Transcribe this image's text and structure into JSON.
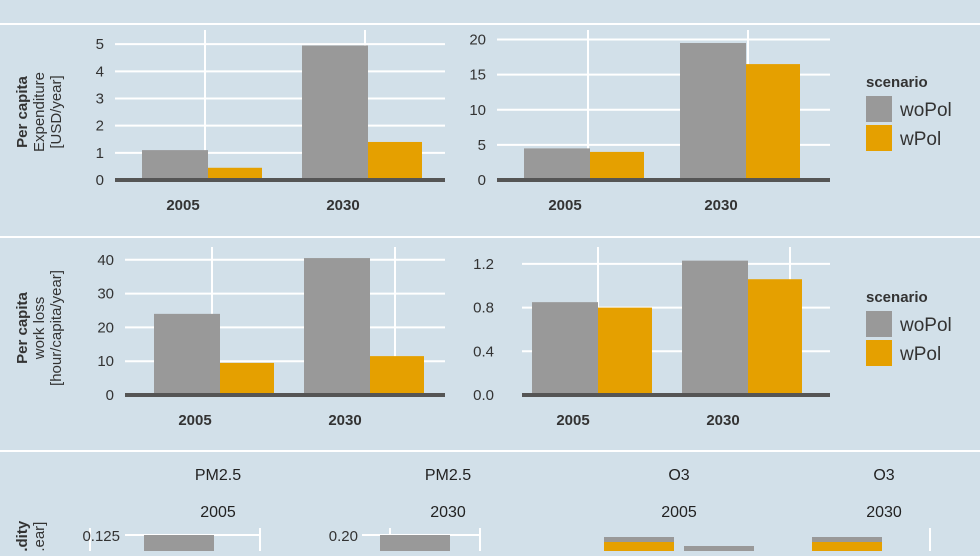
{
  "colors": {
    "background": "#d2e0e9",
    "gridline": "#ffffff",
    "axis": "#555555",
    "text": "#333333",
    "woPol": "#999999",
    "wPol": "#e5a000"
  },
  "legend": {
    "title": "scenario",
    "items": [
      {
        "label": "woPol",
        "color": "#999999"
      },
      {
        "label": "wPol",
        "color": "#e5a000"
      }
    ]
  },
  "row_labels": {
    "expenditure": [
      "Per capita",
      "Expenditure",
      "[USD/year]"
    ],
    "workloss": [
      "Per capita",
      "work loss",
      "[hour/capita/year]"
    ],
    "morbidity": [
      "...dity",
      "...ear]"
    ]
  },
  "facet_strips": [
    {
      "pollutant": "PM2.5",
      "year": "2005"
    },
    {
      "pollutant": "PM2.5",
      "year": "2030"
    },
    {
      "pollutant": "O3",
      "year": "2005"
    },
    {
      "pollutant": "O3",
      "year": "2030"
    }
  ],
  "chart_data": [
    {
      "type": "bar",
      "categories": [
        "2005",
        "2030"
      ],
      "series": [
        {
          "name": "woPol",
          "values": [
            1.1,
            4.95
          ]
        },
        {
          "name": "wPol",
          "values": [
            0.45,
            1.4
          ]
        }
      ],
      "ylim": [
        0,
        5.3
      ],
      "yticks": [
        0,
        1,
        2,
        3,
        4,
        5
      ],
      "ylabel": "Per capita Expenditure [USD/year]"
    },
    {
      "type": "bar",
      "categories": [
        "2005",
        "2030"
      ],
      "series": [
        {
          "name": "woPol",
          "values": [
            4.5,
            19.5
          ]
        },
        {
          "name": "wPol",
          "values": [
            4.0,
            16.5
          ]
        }
      ],
      "ylim": [
        0,
        20.5
      ],
      "yticks": [
        0,
        5,
        10,
        15,
        20
      ]
    },
    {
      "type": "bar",
      "categories": [
        "2005",
        "2030"
      ],
      "series": [
        {
          "name": "woPol",
          "values": [
            24,
            40.5
          ]
        },
        {
          "name": "wPol",
          "values": [
            9.5,
            11.5
          ]
        }
      ],
      "ylim": [
        0,
        42
      ],
      "yticks": [
        0,
        10,
        20,
        30,
        40
      ],
      "ylabel": "Per capita work loss [hour/capita/year]"
    },
    {
      "type": "bar",
      "categories": [
        "2005",
        "2030"
      ],
      "series": [
        {
          "name": "woPol",
          "values": [
            0.85,
            1.23
          ]
        },
        {
          "name": "wPol",
          "values": [
            0.8,
            1.06
          ]
        }
      ],
      "ylim": [
        0,
        1.3
      ],
      "yticks": [
        "0.0",
        "0.4",
        "0.8",
        "1.2"
      ]
    }
  ],
  "morbidity_partial": {
    "yticks_pm25_2005": [
      "0.125"
    ],
    "yticks_pm25_2030": [
      "0.20"
    ],
    "ytick_o3_fragment": "..."
  }
}
